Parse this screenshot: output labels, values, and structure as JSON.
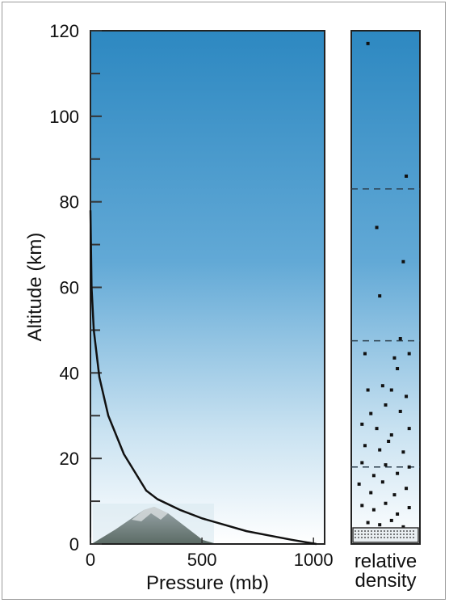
{
  "chart_data": [
    {
      "type": "line",
      "title": "",
      "xlabel": "Pressure (mb)",
      "ylabel": "Altitude (km)",
      "xlim": [
        0,
        1050
      ],
      "ylim": [
        0,
        120
      ],
      "xticks": [
        "0",
        "500",
        "1000"
      ],
      "yticks": [
        "0",
        "20",
        "40",
        "60",
        "80",
        "100",
        "120"
      ],
      "grid": false,
      "series": [
        {
          "name": "",
          "x": [
            0,
            5,
            15,
            40,
            80,
            150,
            250,
            300,
            400,
            500,
            600,
            700,
            800,
            900,
            1013
          ],
          "y": [
            78,
            60,
            50,
            39,
            30,
            21,
            12.5,
            10.5,
            8,
            6,
            4.5,
            3,
            2,
            1,
            0
          ]
        }
      ],
      "background_gradient": {
        "top": "#2f8cc4",
        "bottom": "#ffffff"
      }
    },
    {
      "type": "scatter",
      "xlabel": "relative density",
      "note_lines": [
        {
          "y": 18,
          "style": "dashed"
        },
        {
          "y": 47.5,
          "style": "dashed"
        },
        {
          "y": 83,
          "style": "dashed"
        }
      ],
      "ylim": [
        0,
        120
      ],
      "series": [
        {
          "name": "",
          "x": [
            0.2,
            0.85,
            0.35,
            0.8,
            0.4,
            0.75,
            0.15,
            0.65,
            0.7,
            0.9,
            0.2,
            0.45,
            0.6,
            0.85,
            0.25,
            0.5,
            0.75,
            0.1,
            0.35,
            0.6,
            0.9,
            0.15,
            0.4,
            0.55,
            0.8,
            0.1,
            0.3,
            0.5,
            0.7,
            0.9,
            0.05,
            0.25,
            0.45,
            0.65,
            0.85,
            0.1,
            0.3,
            0.5,
            0.7,
            0.9,
            0.2,
            0.4,
            0.6,
            0.8
          ],
          "y": [
            117,
            86,
            74,
            66,
            58,
            48,
            44.5,
            43.5,
            41,
            44.5,
            36,
            37,
            36,
            34.5,
            30.5,
            32.5,
            31,
            28,
            27,
            25.5,
            27,
            23,
            22,
            24,
            21.5,
            19,
            16,
            18.5,
            16.5,
            18,
            14,
            12,
            14.5,
            11.5,
            13,
            9,
            8,
            9.5,
            7,
            8.5,
            5,
            4.5,
            5.5,
            4
          ]
        }
      ]
    }
  ]
}
